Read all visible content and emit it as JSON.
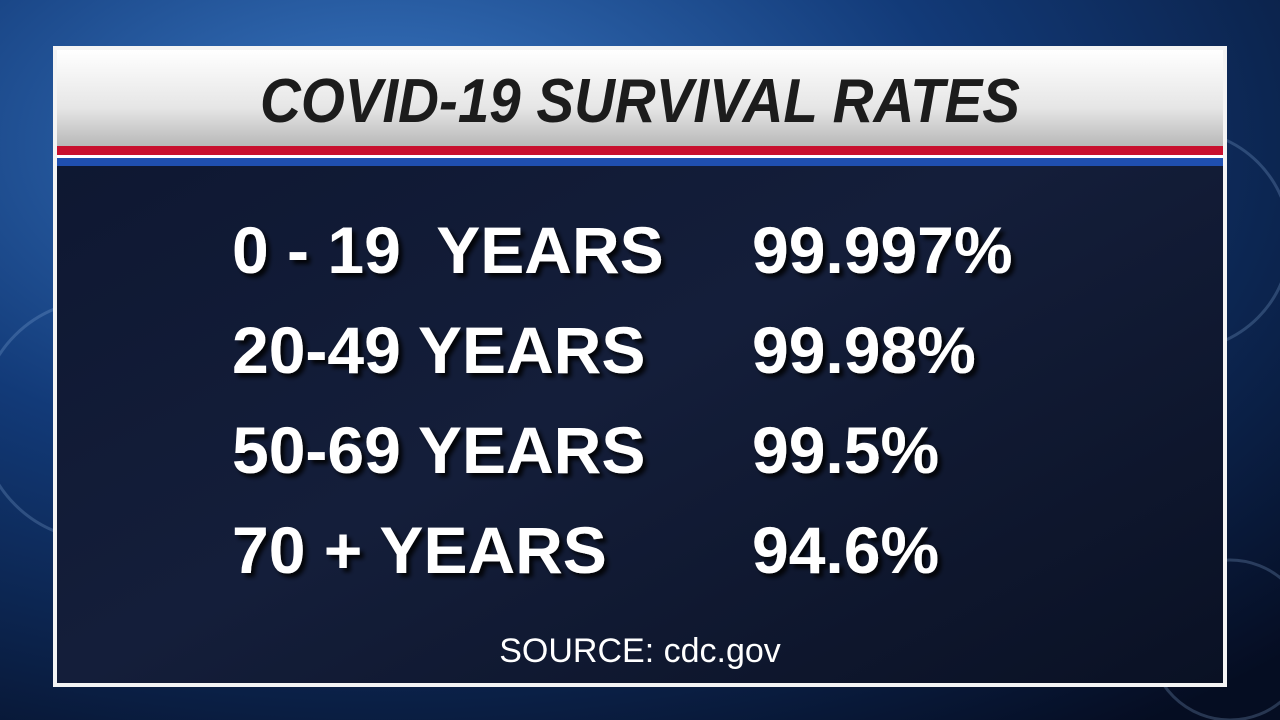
{
  "header": {
    "title": "COVID-19 SURVIVAL RATES"
  },
  "table": {
    "rows": [
      [
        "0 - 19  YEARS",
        "99.997%"
      ],
      [
        "20-49 YEARS",
        "99.98%"
      ],
      [
        "50-69 YEARS",
        "99.5%"
      ],
      [
        "70 + YEARS",
        "94.6%"
      ]
    ]
  },
  "footer": {
    "source": "SOURCE: cdc.gov"
  }
}
